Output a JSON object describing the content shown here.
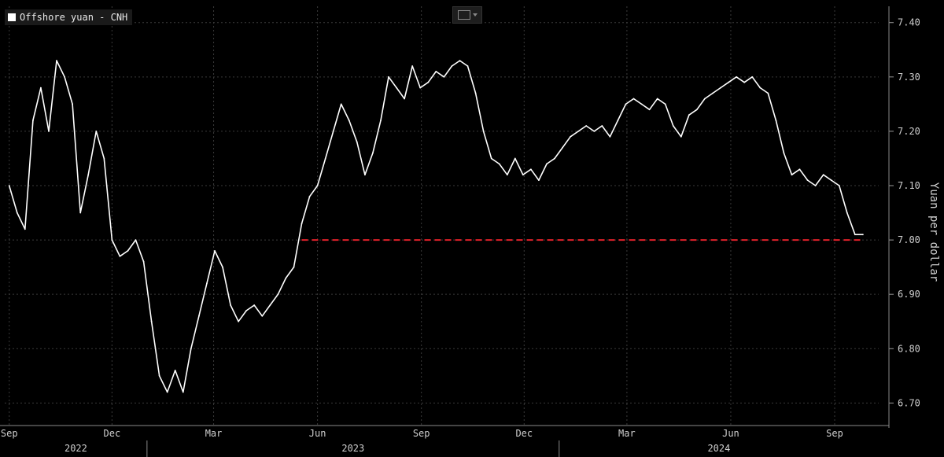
{
  "legend": {
    "label": "Offshore yuan - CNH"
  },
  "icons": {
    "legend_swatch": "square-icon",
    "chart_type": "line-chart-icon"
  },
  "colors": {
    "background": "#000000",
    "series": "#ffffff",
    "threshold": "#e0202a",
    "grid": "#3a3a3a",
    "axis_text": "#cfcfcf"
  },
  "chart_data": {
    "type": "line",
    "series": [
      {
        "name": "Offshore yuan - CNH",
        "x": [
          "2022-09-01",
          "2022-09-08",
          "2022-09-15",
          "2022-09-22",
          "2022-09-29",
          "2022-10-06",
          "2022-10-13",
          "2022-10-20",
          "2022-10-27",
          "2022-11-03",
          "2022-11-10",
          "2022-11-17",
          "2022-11-24",
          "2022-12-01",
          "2022-12-08",
          "2022-12-15",
          "2022-12-22",
          "2022-12-29",
          "2023-01-05",
          "2023-01-12",
          "2023-01-19",
          "2023-01-26",
          "2023-02-02",
          "2023-02-09",
          "2023-02-16",
          "2023-02-23",
          "2023-03-02",
          "2023-03-09",
          "2023-03-16",
          "2023-03-23",
          "2023-03-30",
          "2023-04-06",
          "2023-04-13",
          "2023-04-20",
          "2023-04-27",
          "2023-05-04",
          "2023-05-11",
          "2023-05-18",
          "2023-05-25",
          "2023-06-01",
          "2023-06-08",
          "2023-06-15",
          "2023-06-22",
          "2023-06-29",
          "2023-07-06",
          "2023-07-13",
          "2023-07-20",
          "2023-07-27",
          "2023-08-03",
          "2023-08-10",
          "2023-08-17",
          "2023-08-24",
          "2023-08-31",
          "2023-09-07",
          "2023-09-14",
          "2023-09-21",
          "2023-09-28",
          "2023-10-05",
          "2023-10-12",
          "2023-10-19",
          "2023-10-26",
          "2023-11-02",
          "2023-11-09",
          "2023-11-16",
          "2023-11-23",
          "2023-11-30",
          "2023-12-07",
          "2023-12-14",
          "2023-12-21",
          "2023-12-28",
          "2024-01-04",
          "2024-01-11",
          "2024-01-18",
          "2024-01-25",
          "2024-02-01",
          "2024-02-08",
          "2024-02-15",
          "2024-02-22",
          "2024-02-29",
          "2024-03-07",
          "2024-03-14",
          "2024-03-21",
          "2024-03-28",
          "2024-04-04",
          "2024-04-11",
          "2024-04-18",
          "2024-04-25",
          "2024-05-02",
          "2024-05-09",
          "2024-05-16",
          "2024-05-23",
          "2024-05-30",
          "2024-06-06",
          "2024-06-13",
          "2024-06-20",
          "2024-06-27",
          "2024-07-04",
          "2024-07-11",
          "2024-07-18",
          "2024-07-25",
          "2024-08-01",
          "2024-08-08",
          "2024-08-15",
          "2024-08-22",
          "2024-08-29",
          "2024-09-05",
          "2024-09-12",
          "2024-09-19",
          "2024-09-26"
        ],
        "y": [
          7.1,
          7.05,
          7.02,
          7.22,
          7.28,
          7.2,
          7.33,
          7.3,
          7.25,
          7.05,
          7.12,
          7.2,
          7.15,
          7.0,
          6.97,
          6.98,
          7.0,
          6.96,
          6.85,
          6.75,
          6.72,
          6.76,
          6.72,
          6.8,
          6.86,
          6.92,
          6.98,
          6.95,
          6.88,
          6.85,
          6.87,
          6.88,
          6.86,
          6.88,
          6.9,
          6.93,
          6.95,
          7.03,
          7.08,
          7.1,
          7.15,
          7.2,
          7.25,
          7.22,
          7.18,
          7.12,
          7.16,
          7.22,
          7.3,
          7.28,
          7.26,
          7.32,
          7.28,
          7.29,
          7.31,
          7.3,
          7.32,
          7.33,
          7.32,
          7.27,
          7.2,
          7.15,
          7.14,
          7.12,
          7.15,
          7.12,
          7.13,
          7.11,
          7.14,
          7.15,
          7.17,
          7.19,
          7.2,
          7.21,
          7.2,
          7.21,
          7.19,
          7.22,
          7.25,
          7.26,
          7.25,
          7.24,
          7.26,
          7.25,
          7.21,
          7.19,
          7.23,
          7.24,
          7.26,
          7.27,
          7.28,
          7.29,
          7.3,
          7.29,
          7.3,
          7.28,
          7.27,
          7.22,
          7.16,
          7.12,
          7.13,
          7.11,
          7.1,
          7.12,
          7.11,
          7.1,
          7.05,
          7.01,
          7.01
        ]
      }
    ],
    "threshold": {
      "value": 7.0,
      "from": "2023-05-18",
      "to": "2024-09-26",
      "style": "dashed",
      "color": "#e0202a"
    },
    "x_ticks": [
      {
        "label": "Sep",
        "date": "2022-09-01"
      },
      {
        "label": "Dec",
        "date": "2022-12-01"
      },
      {
        "label": "Mar",
        "date": "2023-03-01"
      },
      {
        "label": "Jun",
        "date": "2023-06-01"
      },
      {
        "label": "Sep",
        "date": "2023-09-01"
      },
      {
        "label": "Dec",
        "date": "2023-12-01"
      },
      {
        "label": "Mar",
        "date": "2024-03-01"
      },
      {
        "label": "Jun",
        "date": "2024-06-01"
      },
      {
        "label": "Sep",
        "date": "2024-09-01"
      }
    ],
    "year_labels": [
      {
        "label": "2022",
        "from": "2022-08-28",
        "to": "2023-01-01"
      },
      {
        "label": "2023",
        "from": "2023-01-01",
        "to": "2024-01-01"
      },
      {
        "label": "2024",
        "from": "2024-01-01",
        "to": "2024-10-10"
      }
    ],
    "xlim": [
      "2022-08-28",
      "2024-10-10"
    ],
    "y_ticks": [
      "6.70",
      "6.80",
      "6.90",
      "7.00",
      "7.10",
      "7.20",
      "7.30",
      "7.40"
    ],
    "ylabel": "Yuan per dollar",
    "ylim": [
      6.66,
      7.43
    ],
    "grid": true,
    "legend_position": "top-left"
  }
}
